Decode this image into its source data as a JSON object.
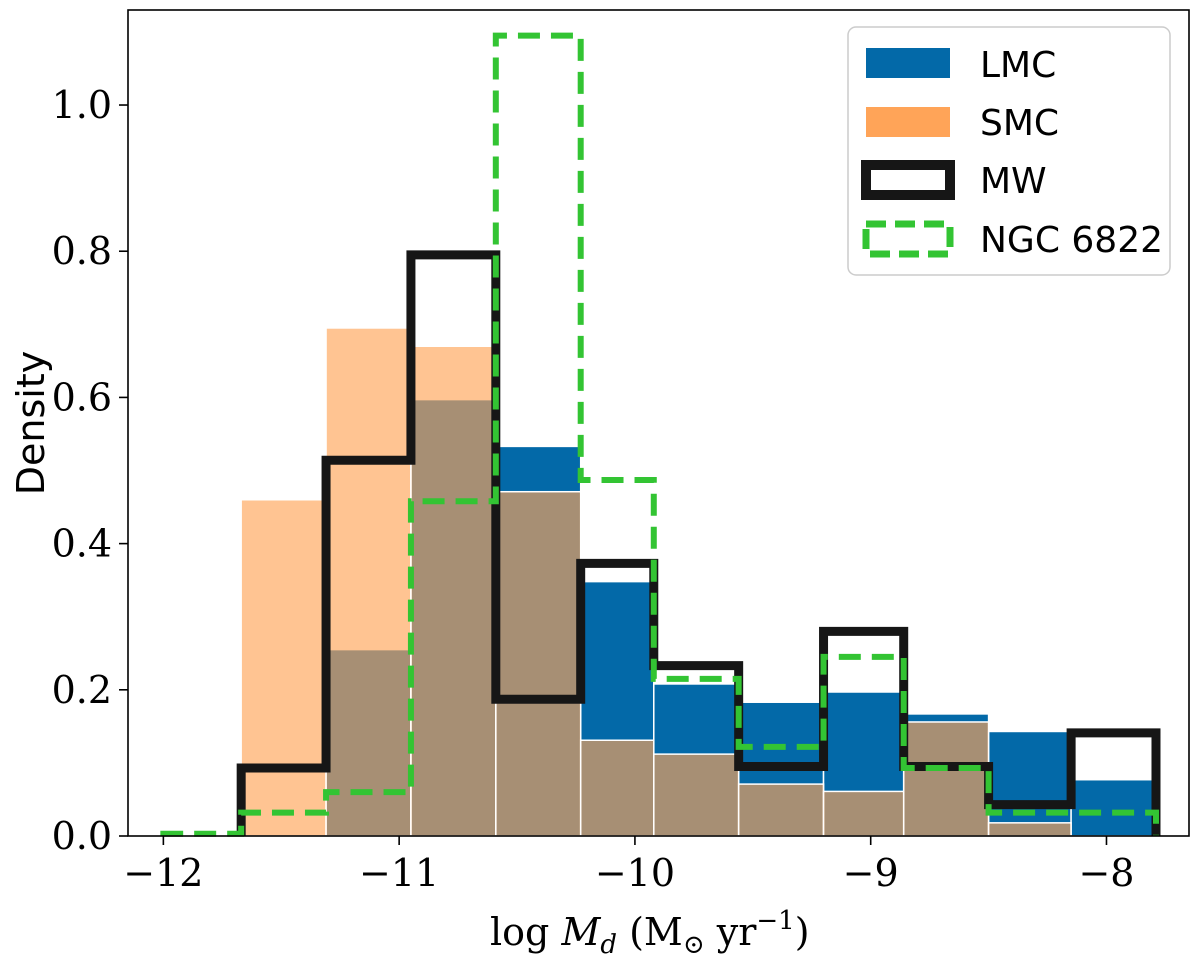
{
  "chart_data": {
    "type": "histogram",
    "title": "",
    "xlabel": "log Ṁ_d (M⊙ yr⁻¹)",
    "xlabel_parts": {
      "pre": "log ",
      "M": "M",
      "sub": "d",
      "paren_open": " (M",
      "odot": "⊙",
      "yr": " yr",
      "exp": "−1",
      "paren_close": ")"
    },
    "ylabel": "Density",
    "xlim": [
      -12.15,
      -7.65
    ],
    "ylim": [
      0,
      1.13
    ],
    "x_ticks": [
      -12,
      -11,
      -10,
      -9,
      -8
    ],
    "x_tick_labels": [
      "−12",
      "−11",
      "−10",
      "−9",
      "−8"
    ],
    "y_ticks": [
      0.0,
      0.2,
      0.4,
      0.6,
      0.8,
      1.0
    ],
    "y_tick_labels": [
      "0.0",
      "0.2",
      "0.4",
      "0.6",
      "0.8",
      "1.0"
    ],
    "bin_edges": [
      -11.67,
      -11.31,
      -10.95,
      -10.59,
      -10.23,
      -9.92,
      -9.56,
      -9.2,
      -8.86,
      -8.5,
      -8.15,
      -7.79
    ],
    "series": [
      {
        "name": "LMC",
        "style": "filled",
        "color": "#1f77b4",
        "fill": "#0369a8",
        "values": [
          0.0,
          0.255,
          0.597,
          0.533,
          0.348,
          0.208,
          0.183,
          0.197,
          0.167,
          0.143,
          0.077
        ]
      },
      {
        "name": "SMC",
        "style": "filled",
        "color": "#ffa45c",
        "fill": "#ffa458",
        "values": [
          0.46,
          0.695,
          0.67,
          0.471,
          0.131,
          0.112,
          0.071,
          0.061,
          0.156,
          0.018,
          0.0
        ]
      },
      {
        "name": "MW",
        "style": "step",
        "color": "#161616",
        "edges": [
          -11.67,
          -11.31,
          -10.95,
          -10.59,
          -10.23,
          -9.92,
          -9.56,
          -9.2,
          -8.86,
          -8.5,
          -8.15,
          -7.79
        ],
        "values": [
          0.093,
          0.514,
          0.795,
          0.187,
          0.373,
          0.233,
          0.095,
          0.28,
          0.095,
          0.043,
          0.141
        ]
      },
      {
        "name": "NGC 6822",
        "style": "step-dashed",
        "color": "#33c433",
        "edges": [
          -12.0,
          -11.67,
          -11.31,
          -10.95,
          -10.59,
          -10.23,
          -9.92,
          -9.56,
          -9.2,
          -8.86,
          -8.5,
          -7.79
        ],
        "values": [
          0.003,
          0.032,
          0.06,
          0.458,
          1.095,
          0.487,
          0.215,
          0.122,
          0.245,
          0.093,
          0.032
        ]
      }
    ],
    "legend": {
      "position": "top-right",
      "entries": [
        "LMC",
        "SMC",
        "MW",
        "NGC 6822"
      ]
    },
    "overlap_color": "#b07a3d",
    "bar_edge_color": "#ffffff"
  }
}
